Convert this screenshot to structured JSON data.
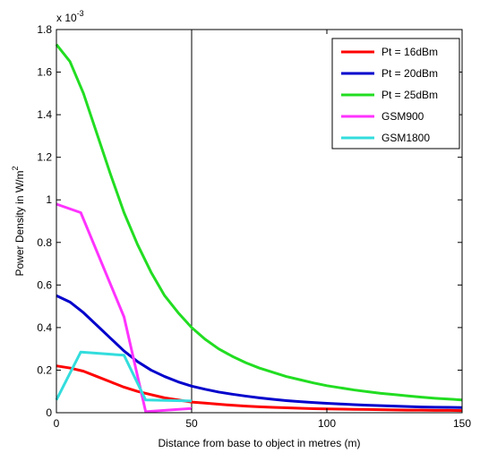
{
  "chart_data": {
    "type": "line",
    "title": "",
    "xlabel": "Distance from base to object in metres (m)",
    "ylabel": "Power Density in W/m",
    "ylabel_sup": "2",
    "y_multiplier": "x 10",
    "y_multiplier_exp": "-3",
    "xlim": [
      0,
      150
    ],
    "ylim": [
      0,
      1.8
    ],
    "x_ticks": [
      0,
      50,
      100,
      150
    ],
    "x_tick_labels": [
      "0",
      "50",
      "100",
      "150"
    ],
    "y_ticks": [
      0,
      0.2,
      0.4,
      0.6,
      0.8,
      1.0,
      1.2,
      1.4,
      1.6,
      1.8
    ],
    "y_tick_labels": [
      "0",
      "0.2",
      "0.4",
      "0.6",
      "0.8",
      "1",
      "1.2",
      "1.4",
      "1.6",
      "1.8"
    ],
    "gridlines_x": [
      50
    ],
    "grid": "partial",
    "legend_position": "top-right",
    "series": [
      {
        "name": "Pt = 16dBm",
        "color": "#ff0000",
        "x": [
          0,
          5,
          10,
          15,
          20,
          25,
          30,
          35,
          40,
          45,
          50,
          55,
          60,
          65,
          70,
          75,
          80,
          85,
          90,
          95,
          100,
          105,
          110,
          115,
          120,
          125,
          130,
          135,
          140,
          145,
          150
        ],
        "values": [
          0.22,
          0.21,
          0.195,
          0.17,
          0.145,
          0.12,
          0.1,
          0.085,
          0.07,
          0.06,
          0.05,
          0.045,
          0.04,
          0.035,
          0.031,
          0.028,
          0.025,
          0.023,
          0.021,
          0.019,
          0.018,
          0.017,
          0.016,
          0.015,
          0.014,
          0.013,
          0.012,
          0.012,
          0.011,
          0.011,
          0.01
        ]
      },
      {
        "name": "Pt = 20dBm",
        "color": "#0000cc",
        "x": [
          0,
          5,
          10,
          15,
          20,
          25,
          30,
          35,
          40,
          45,
          50,
          55,
          60,
          65,
          70,
          75,
          80,
          85,
          90,
          95,
          100,
          105,
          110,
          115,
          120,
          125,
          130,
          135,
          140,
          145,
          150
        ],
        "values": [
          0.55,
          0.52,
          0.47,
          0.41,
          0.35,
          0.29,
          0.24,
          0.2,
          0.17,
          0.145,
          0.125,
          0.11,
          0.097,
          0.087,
          0.078,
          0.07,
          0.063,
          0.057,
          0.052,
          0.048,
          0.044,
          0.041,
          0.038,
          0.035,
          0.033,
          0.031,
          0.029,
          0.027,
          0.026,
          0.025,
          0.024
        ]
      },
      {
        "name": "Pt = 25dBm",
        "color": "#22dd22",
        "x": [
          0,
          5,
          10,
          15,
          20,
          25,
          30,
          35,
          40,
          45,
          50,
          55,
          60,
          65,
          70,
          75,
          80,
          85,
          90,
          95,
          100,
          105,
          110,
          115,
          120,
          125,
          130,
          135,
          140,
          145,
          150
        ],
        "values": [
          1.73,
          1.65,
          1.5,
          1.31,
          1.12,
          0.94,
          0.79,
          0.66,
          0.55,
          0.47,
          0.4,
          0.345,
          0.3,
          0.265,
          0.235,
          0.21,
          0.19,
          0.17,
          0.155,
          0.14,
          0.127,
          0.117,
          0.107,
          0.099,
          0.091,
          0.085,
          0.079,
          0.073,
          0.068,
          0.064,
          0.06
        ]
      },
      {
        "name": "GSM900",
        "color": "#ff33ff",
        "x": [
          0,
          9,
          25,
          33,
          50
        ],
        "values": [
          0.98,
          0.94,
          0.45,
          0.005,
          0.02
        ]
      },
      {
        "name": "GSM1800",
        "color": "#33dddd",
        "x": [
          0,
          9,
          25,
          33,
          50
        ],
        "values": [
          0.06,
          0.285,
          0.27,
          0.06,
          0.055
        ]
      }
    ]
  }
}
